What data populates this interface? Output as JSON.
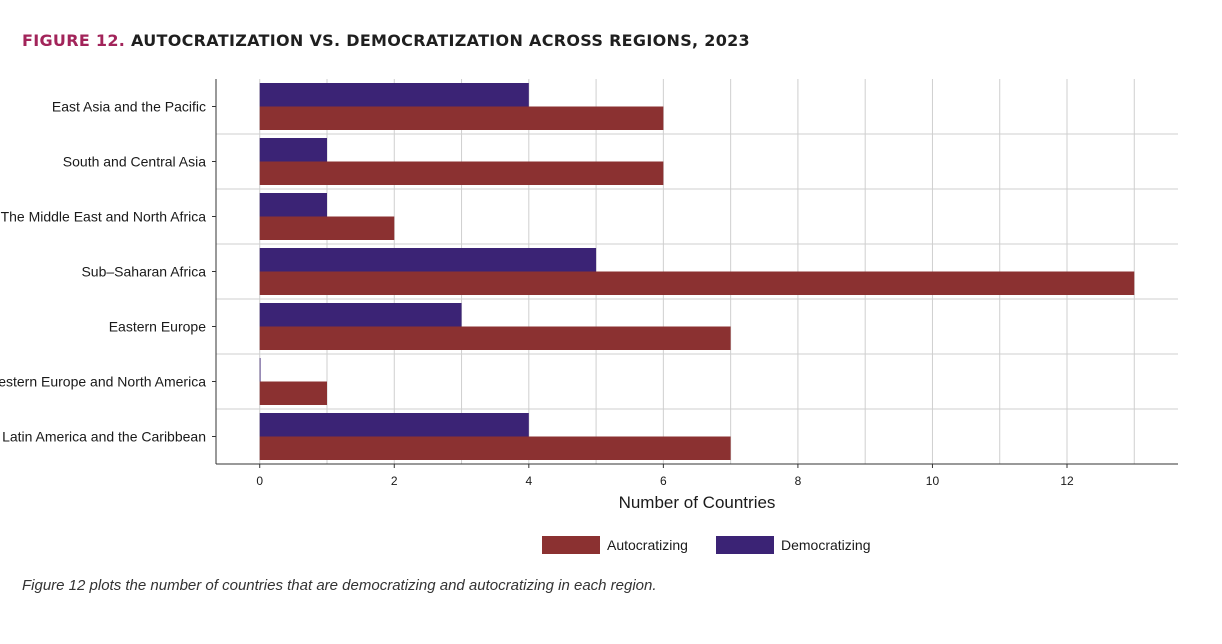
{
  "figure": {
    "number_label": "FIGURE 12.",
    "title": "AUTOCRATIZATION VS. DEMOCRATIZATION ACROSS REGIONS, 2023",
    "caption": "Figure 12 plots the number of countries that are democratizing and autocratizing in each region."
  },
  "chart_data": {
    "type": "bar",
    "orientation": "horizontal",
    "categories": [
      "East Asia and the Pacific",
      "South and Central Asia",
      "The Middle East and North Africa",
      "Sub–Saharan Africa",
      "Eastern Europe",
      "Western Europe and North America",
      "Latin America and the Caribbean"
    ],
    "series": [
      {
        "name": "Democratizing",
        "color": "#3b2375",
        "values": [
          4,
          1,
          1,
          5,
          3,
          0,
          4
        ]
      },
      {
        "name": "Autocratizing",
        "color": "#8b3131",
        "values": [
          6,
          6,
          2,
          13,
          7,
          1,
          7
        ]
      }
    ],
    "legend_order": [
      "Autocratizing",
      "Democratizing"
    ],
    "xlabel": "Number of Countries",
    "ylabel": "",
    "xlim": [
      -0.65,
      13.65
    ],
    "xticks": [
      0,
      2,
      4,
      6,
      8,
      10,
      12
    ],
    "grid": true,
    "legend_position": "bottom-center"
  }
}
